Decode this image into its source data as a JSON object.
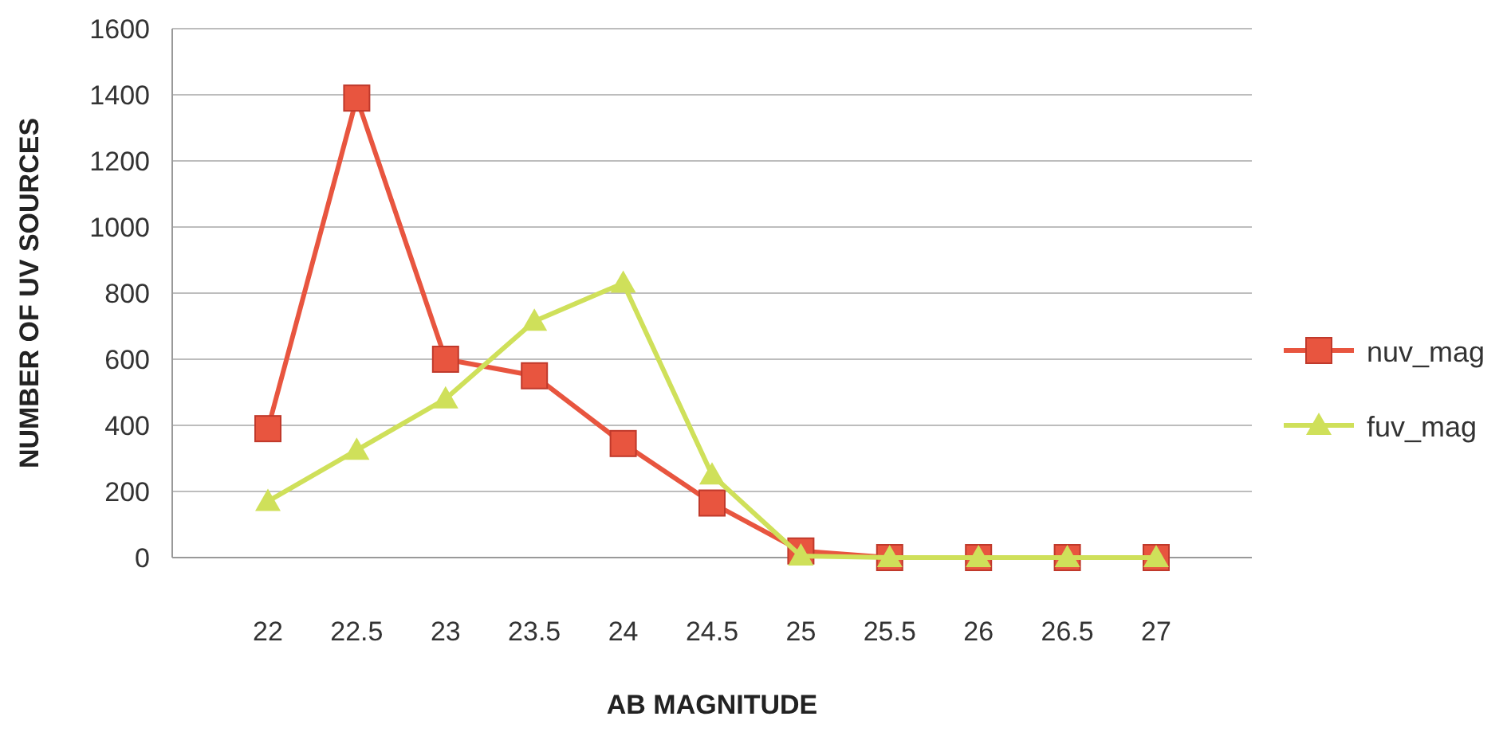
{
  "chart_data": {
    "type": "line",
    "xlabel": "AB MAGNITUDE",
    "ylabel": "NUMBER OF UV SOURCES",
    "categories": [
      "22",
      "22.5",
      "23",
      "23.5",
      "24",
      "24.5",
      "25",
      "25.5",
      "26",
      "26.5",
      "27"
    ],
    "series": [
      {
        "name": "nuv_mag",
        "color": "#e8553f",
        "marker": "square",
        "values": [
          390,
          1390,
          600,
          550,
          345,
          165,
          20,
          0,
          0,
          0,
          0
        ]
      },
      {
        "name": "fuv_mag",
        "color": "#cfe05a",
        "marker": "triangle",
        "values": [
          170,
          325,
          480,
          715,
          830,
          250,
          5,
          0,
          0,
          0,
          0
        ]
      }
    ],
    "ylim": [
      0,
      1600
    ],
    "yticks": [
      0,
      200,
      400,
      600,
      800,
      1000,
      1200,
      1400,
      1600
    ],
    "grid": "y",
    "legend": "right"
  }
}
